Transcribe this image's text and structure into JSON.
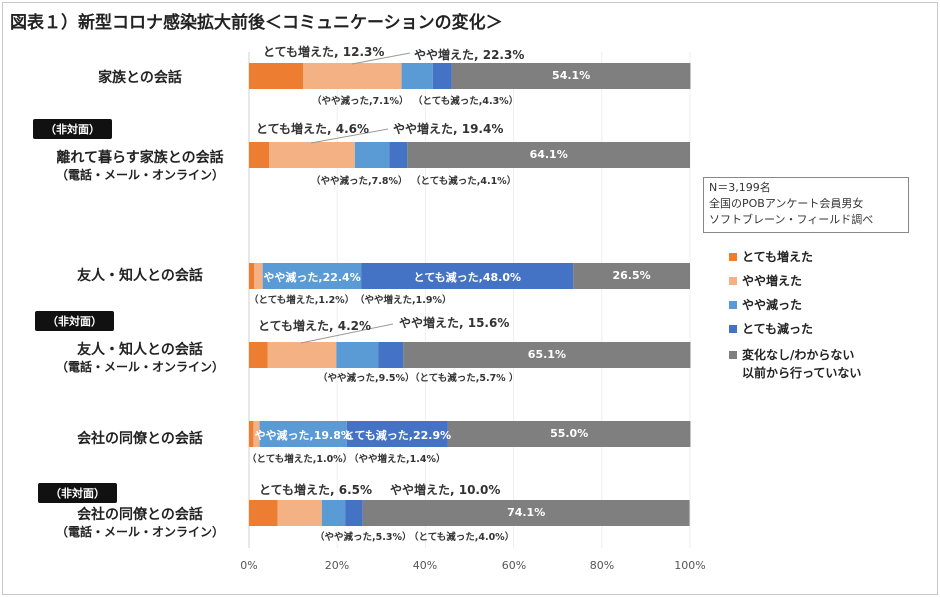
{
  "title": "図表１）新型コロナ感染拡大前後＜コミュニケーションの変化＞",
  "note": [
    "N＝3,199名",
    "全国のPOBアンケート会員男女",
    "ソフトブレーン・フィールド調べ"
  ],
  "chart_data": {
    "type": "bar",
    "orientation": "horizontal-stacked-100",
    "categories": [
      {
        "tag": "",
        "label": "家族との会話",
        "sub": ""
      },
      {
        "tag": "（非対面）",
        "label": "離れて暮らす家族との会話",
        "sub": "（電話・メール・オンライン）"
      },
      {
        "tag": "",
        "label": "友人・知人との会話",
        "sub": ""
      },
      {
        "tag": "（非対面）",
        "label": "友人・知人との会話",
        "sub": "（電話・メール・オンライン）"
      },
      {
        "tag": "",
        "label": "会社の同僚との会話",
        "sub": ""
      },
      {
        "tag": "（非対面）",
        "label": "会社の同僚との会話",
        "sub": "（電話・メール・オンライン）"
      }
    ],
    "series": [
      {
        "name": "とても増えた",
        "color": "#ED7D31",
        "values": [
          12.3,
          4.6,
          1.2,
          4.2,
          1.0,
          6.5
        ]
      },
      {
        "name": "やや増えた",
        "color": "#F4B183",
        "values": [
          22.3,
          19.4,
          1.9,
          15.6,
          1.4,
          10.0
        ]
      },
      {
        "name": "やや減った",
        "color": "#5B9BD5",
        "values": [
          7.1,
          7.8,
          22.4,
          9.5,
          19.8,
          5.3
        ]
      },
      {
        "name": "とても減った",
        "color": "#4472C4",
        "values": [
          4.3,
          4.1,
          48.0,
          5.7,
          22.9,
          4.0
        ]
      },
      {
        "name": "変化なし/わからない\n以前から行っていない",
        "color": "#7F7F7F",
        "values": [
          54.1,
          64.1,
          26.5,
          65.1,
          55.0,
          74.1
        ]
      }
    ],
    "data_labels": [
      {
        "top": [
          "とても増えた, 12.3%",
          "やや増えた, 22.3%"
        ],
        "bottom": [
          "（やや減った,7.1%）",
          "（とても減った,4.3%）"
        ],
        "inside": [
          "",
          "",
          "",
          "",
          "54.1%"
        ]
      },
      {
        "top": [
          "とても増えた, 4.6%",
          "やや増えた, 19.4%"
        ],
        "bottom": [
          "（やや減った,7.8%）",
          "（とても減った,4.1%）"
        ],
        "inside": [
          "",
          "",
          "",
          "",
          "64.1%"
        ]
      },
      {
        "top": [],
        "bottom": [
          "（とても増えた,1.2%）",
          "（やや増えた,1.9%）"
        ],
        "inside": [
          "",
          "",
          "やや減った,22.4%",
          "とても減った,48.0%",
          "26.5%"
        ]
      },
      {
        "top": [
          "とても増えた, 4.2%",
          "やや増えた, 15.6%"
        ],
        "bottom": [
          "（やや減った,9.5%）",
          "（とても減った,5.7% ）"
        ],
        "inside": [
          "",
          "",
          "",
          "",
          "65.1%"
        ]
      },
      {
        "top": [],
        "bottom": [
          "（とても増えた,1.0%）",
          "（やや増えた,1.4%）"
        ],
        "inside": [
          "",
          "",
          "やや減った,19.8%",
          "とても減った,22.9%",
          "55.0%"
        ]
      },
      {
        "top": [
          "とても増えた, 6.5%",
          "やや増えた, 10.0%"
        ],
        "bottom": [
          "（やや減った,5.3%）",
          "（とても減った,4.0%）"
        ],
        "inside": [
          "",
          "",
          "",
          "",
          "74.1%"
        ]
      }
    ],
    "x_ticks": [
      "0%",
      "20%",
      "40%",
      "60%",
      "80%",
      "100%"
    ],
    "xlim": [
      0,
      100
    ],
    "legend": {
      "position": "right",
      "items": [
        "とても増えた",
        "やや増えた",
        "やや減った",
        "とても減った",
        "変化なし/わからない",
        "以前から行っていない"
      ]
    }
  }
}
